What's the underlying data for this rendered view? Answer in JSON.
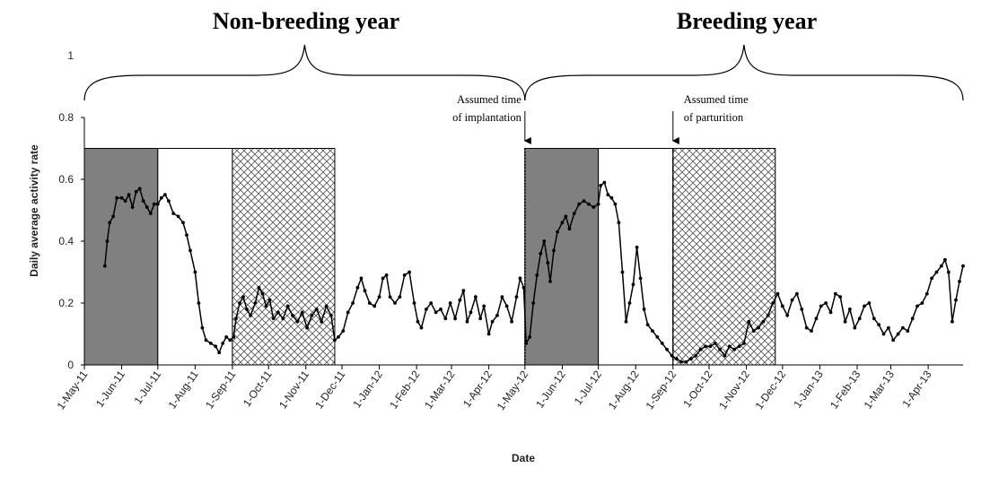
{
  "chart_data": {
    "type": "line",
    "xlabel": "Date",
    "ylabel": "Daily average activity rate",
    "ylim": [
      0,
      1
    ],
    "yticks": [
      "0",
      "0.2",
      "0.4",
      "0.6",
      "0.8",
      "1"
    ],
    "x_range": [
      "2011-05-01",
      "2013-04-30"
    ],
    "x_tick_labels": [
      {
        "date": "2011-05-01",
        "label": "1-May-11"
      },
      {
        "date": "2011-06-01",
        "label": "1-Jun-11"
      },
      {
        "date": "2011-07-01",
        "label": "1-Jul-11"
      },
      {
        "date": "2011-08-01",
        "label": "1-Aug-11"
      },
      {
        "date": "2011-09-01",
        "label": "1-Sep-11"
      },
      {
        "date": "2011-10-01",
        "label": "1-Oct-11"
      },
      {
        "date": "2011-11-01",
        "label": "1-Nov-11"
      },
      {
        "date": "2011-12-01",
        "label": "1-Dec-11"
      },
      {
        "date": "2012-01-01",
        "label": "1-Jan-12"
      },
      {
        "date": "2012-02-01",
        "label": "1-Feb-12"
      },
      {
        "date": "2012-03-01",
        "label": "1-Mar-12"
      },
      {
        "date": "2012-04-01",
        "label": "1-Apr-12"
      },
      {
        "date": "2012-05-01",
        "label": "1-May-12"
      },
      {
        "date": "2012-06-01",
        "label": "1-Jun-12"
      },
      {
        "date": "2012-07-01",
        "label": "1-Jul-12"
      },
      {
        "date": "2012-08-01",
        "label": "1-Aug-12"
      },
      {
        "date": "2012-09-01",
        "label": "1-Sep-12"
      },
      {
        "date": "2012-10-01",
        "label": "1-Oct-12"
      },
      {
        "date": "2012-11-01",
        "label": "1-Nov-12"
      },
      {
        "date": "2012-12-01",
        "label": "1-Dec-12"
      },
      {
        "date": "2013-01-01",
        "label": "1-Jan-13"
      },
      {
        "date": "2013-02-01",
        "label": "1-Feb-13"
      },
      {
        "date": "2013-03-01",
        "label": "1-Mar-13"
      },
      {
        "date": "2013-04-01",
        "label": "1-Apr-13"
      }
    ],
    "period_titles": [
      {
        "label": "Non-breeding year",
        "start": "2011-05-01",
        "end": "2012-05-01"
      },
      {
        "label": "Breeding year",
        "start": "2012-05-01",
        "end": "2013-04-30"
      }
    ],
    "shaded_periods": [
      {
        "start": "2011-05-01",
        "end": "2011-07-01",
        "fill": "dark-gray",
        "top": 0.7
      },
      {
        "start": "2011-07-01",
        "end": "2011-09-01",
        "fill": "white",
        "top": 0.7
      },
      {
        "start": "2011-09-01",
        "end": "2011-11-25",
        "fill": "crosshatch",
        "top": 0.7
      },
      {
        "start": "2012-05-01",
        "end": "2012-07-01",
        "fill": "dark-gray",
        "top": 0.7
      },
      {
        "start": "2012-07-01",
        "end": "2012-09-01",
        "fill": "white",
        "top": 0.7
      },
      {
        "start": "2012-09-01",
        "end": "2012-11-25",
        "fill": "crosshatch",
        "top": 0.7
      }
    ],
    "annotations": [
      {
        "lines": [
          "Assumed time",
          "of implantation"
        ],
        "date": "2012-05-01",
        "line_style": "dotted"
      },
      {
        "lines": [
          "Assumed time",
          "of parturition"
        ],
        "date": "2012-09-01",
        "line_style": "dashed"
      }
    ],
    "series": [
      {
        "points": [
          [
            "2011-05-18",
            0.32
          ],
          [
            "2011-05-20",
            0.4
          ],
          [
            "2011-05-22",
            0.46
          ],
          [
            "2011-05-25",
            0.48
          ],
          [
            "2011-05-28",
            0.54
          ],
          [
            "2011-06-01",
            0.54
          ],
          [
            "2011-06-04",
            0.53
          ],
          [
            "2011-06-07",
            0.55
          ],
          [
            "2011-06-10",
            0.51
          ],
          [
            "2011-06-13",
            0.56
          ],
          [
            "2011-06-16",
            0.57
          ],
          [
            "2011-06-19",
            0.53
          ],
          [
            "2011-06-22",
            0.51
          ],
          [
            "2011-06-25",
            0.49
          ],
          [
            "2011-06-28",
            0.52
          ],
          [
            "2011-07-01",
            0.52
          ],
          [
            "2011-07-04",
            0.54
          ],
          [
            "2011-07-07",
            0.55
          ],
          [
            "2011-07-10",
            0.53
          ],
          [
            "2011-07-14",
            0.49
          ],
          [
            "2011-07-18",
            0.48
          ],
          [
            "2011-07-22",
            0.46
          ],
          [
            "2011-07-25",
            0.42
          ],
          [
            "2011-07-28",
            0.37
          ],
          [
            "2011-08-01",
            0.3
          ],
          [
            "2011-08-04",
            0.2
          ],
          [
            "2011-08-07",
            0.12
          ],
          [
            "2011-08-10",
            0.08
          ],
          [
            "2011-08-14",
            0.07
          ],
          [
            "2011-08-18",
            0.06
          ],
          [
            "2011-08-21",
            0.04
          ],
          [
            "2011-08-24",
            0.07
          ],
          [
            "2011-08-27",
            0.09
          ],
          [
            "2011-08-30",
            0.08
          ],
          [
            "2011-09-02",
            0.09
          ],
          [
            "2011-09-04",
            0.15
          ],
          [
            "2011-09-07",
            0.2
          ],
          [
            "2011-09-10",
            0.22
          ],
          [
            "2011-09-13",
            0.18
          ],
          [
            "2011-09-16",
            0.16
          ],
          [
            "2011-09-20",
            0.2
          ],
          [
            "2011-09-23",
            0.25
          ],
          [
            "2011-09-26",
            0.23
          ],
          [
            "2011-09-29",
            0.19
          ],
          [
            "2011-10-02",
            0.21
          ],
          [
            "2011-10-05",
            0.15
          ],
          [
            "2011-10-09",
            0.17
          ],
          [
            "2011-10-13",
            0.15
          ],
          [
            "2011-10-17",
            0.19
          ],
          [
            "2011-10-21",
            0.16
          ],
          [
            "2011-10-25",
            0.14
          ],
          [
            "2011-10-29",
            0.17
          ],
          [
            "2011-11-02",
            0.12
          ],
          [
            "2011-11-06",
            0.16
          ],
          [
            "2011-11-10",
            0.18
          ],
          [
            "2011-11-14",
            0.14
          ],
          [
            "2011-11-18",
            0.19
          ],
          [
            "2011-11-22",
            0.16
          ],
          [
            "2011-11-25",
            0.08
          ],
          [
            "2011-11-28",
            0.09
          ],
          [
            "2011-12-02",
            0.11
          ],
          [
            "2011-12-06",
            0.17
          ],
          [
            "2011-12-10",
            0.2
          ],
          [
            "2011-12-14",
            0.25
          ],
          [
            "2011-12-17",
            0.28
          ],
          [
            "2011-12-20",
            0.24
          ],
          [
            "2011-12-24",
            0.2
          ],
          [
            "2011-12-28",
            0.19
          ],
          [
            "2012-01-01",
            0.22
          ],
          [
            "2012-01-04",
            0.28
          ],
          [
            "2012-01-07",
            0.29
          ],
          [
            "2012-01-10",
            0.22
          ],
          [
            "2012-01-14",
            0.2
          ],
          [
            "2012-01-18",
            0.22
          ],
          [
            "2012-01-22",
            0.29
          ],
          [
            "2012-01-26",
            0.3
          ],
          [
            "2012-01-30",
            0.2
          ],
          [
            "2012-02-02",
            0.14
          ],
          [
            "2012-02-05",
            0.12
          ],
          [
            "2012-02-09",
            0.18
          ],
          [
            "2012-02-13",
            0.2
          ],
          [
            "2012-02-17",
            0.17
          ],
          [
            "2012-02-21",
            0.18
          ],
          [
            "2012-02-25",
            0.15
          ],
          [
            "2012-02-29",
            0.2
          ],
          [
            "2012-03-04",
            0.15
          ],
          [
            "2012-03-08",
            0.21
          ],
          [
            "2012-03-11",
            0.24
          ],
          [
            "2012-03-14",
            0.14
          ],
          [
            "2012-03-17",
            0.17
          ],
          [
            "2012-03-21",
            0.22
          ],
          [
            "2012-03-25",
            0.15
          ],
          [
            "2012-03-28",
            0.19
          ],
          [
            "2012-04-01",
            0.1
          ],
          [
            "2012-04-04",
            0.14
          ],
          [
            "2012-04-08",
            0.16
          ],
          [
            "2012-04-12",
            0.22
          ],
          [
            "2012-04-16",
            0.19
          ],
          [
            "2012-04-20",
            0.14
          ],
          [
            "2012-04-24",
            0.22
          ],
          [
            "2012-04-27",
            0.28
          ],
          [
            "2012-04-30",
            0.25
          ],
          [
            "2012-05-02",
            0.07
          ],
          [
            "2012-05-05",
            0.09
          ],
          [
            "2012-05-08",
            0.2
          ],
          [
            "2012-05-11",
            0.29
          ],
          [
            "2012-05-14",
            0.36
          ],
          [
            "2012-05-17",
            0.4
          ],
          [
            "2012-05-20",
            0.33
          ],
          [
            "2012-05-22",
            0.27
          ],
          [
            "2012-05-25",
            0.37
          ],
          [
            "2012-05-28",
            0.43
          ],
          [
            "2012-06-01",
            0.46
          ],
          [
            "2012-06-04",
            0.48
          ],
          [
            "2012-06-07",
            0.44
          ],
          [
            "2012-06-11",
            0.49
          ],
          [
            "2012-06-15",
            0.52
          ],
          [
            "2012-06-19",
            0.53
          ],
          [
            "2012-06-23",
            0.52
          ],
          [
            "2012-06-27",
            0.51
          ],
          [
            "2012-07-01",
            0.52
          ],
          [
            "2012-07-03",
            0.58
          ],
          [
            "2012-07-06",
            0.59
          ],
          [
            "2012-07-09",
            0.55
          ],
          [
            "2012-07-12",
            0.54
          ],
          [
            "2012-07-15",
            0.52
          ],
          [
            "2012-07-18",
            0.46
          ],
          [
            "2012-07-21",
            0.3
          ],
          [
            "2012-07-24",
            0.14
          ],
          [
            "2012-07-27",
            0.2
          ],
          [
            "2012-07-30",
            0.26
          ],
          [
            "2012-08-02",
            0.38
          ],
          [
            "2012-08-05",
            0.28
          ],
          [
            "2012-08-08",
            0.18
          ],
          [
            "2012-08-11",
            0.13
          ],
          [
            "2012-08-15",
            0.11
          ],
          [
            "2012-08-19",
            0.09
          ],
          [
            "2012-08-23",
            0.07
          ],
          [
            "2012-08-27",
            0.05
          ],
          [
            "2012-08-31",
            0.03
          ],
          [
            "2012-09-04",
            0.02
          ],
          [
            "2012-09-08",
            0.01
          ],
          [
            "2012-09-12",
            0.01
          ],
          [
            "2012-09-16",
            0.02
          ],
          [
            "2012-09-20",
            0.03
          ],
          [
            "2012-09-24",
            0.05
          ],
          [
            "2012-09-28",
            0.06
          ],
          [
            "2012-10-02",
            0.06
          ],
          [
            "2012-10-06",
            0.07
          ],
          [
            "2012-10-10",
            0.05
          ],
          [
            "2012-10-14",
            0.03
          ],
          [
            "2012-10-18",
            0.06
          ],
          [
            "2012-10-22",
            0.05
          ],
          [
            "2012-10-26",
            0.06
          ],
          [
            "2012-10-30",
            0.07
          ],
          [
            "2012-11-03",
            0.14
          ],
          [
            "2012-11-07",
            0.11
          ],
          [
            "2012-11-11",
            0.12
          ],
          [
            "2012-11-15",
            0.14
          ],
          [
            "2012-11-19",
            0.16
          ],
          [
            "2012-11-23",
            0.2
          ],
          [
            "2012-11-27",
            0.23
          ],
          [
            "2012-12-01",
            0.19
          ],
          [
            "2012-12-05",
            0.16
          ],
          [
            "2012-12-09",
            0.21
          ],
          [
            "2012-12-13",
            0.23
          ],
          [
            "2012-12-17",
            0.18
          ],
          [
            "2012-12-21",
            0.12
          ],
          [
            "2012-12-25",
            0.11
          ],
          [
            "2012-12-29",
            0.15
          ],
          [
            "2013-01-02",
            0.19
          ],
          [
            "2013-01-06",
            0.2
          ],
          [
            "2013-01-10",
            0.17
          ],
          [
            "2013-01-14",
            0.23
          ],
          [
            "2013-01-18",
            0.22
          ],
          [
            "2013-01-22",
            0.14
          ],
          [
            "2013-01-26",
            0.18
          ],
          [
            "2013-01-30",
            0.12
          ],
          [
            "2013-02-03",
            0.15
          ],
          [
            "2013-02-07",
            0.19
          ],
          [
            "2013-02-11",
            0.2
          ],
          [
            "2013-02-15",
            0.15
          ],
          [
            "2013-02-19",
            0.13
          ],
          [
            "2013-02-23",
            0.1
          ],
          [
            "2013-02-27",
            0.12
          ],
          [
            "2013-03-03",
            0.08
          ],
          [
            "2013-03-07",
            0.1
          ],
          [
            "2013-03-11",
            0.12
          ],
          [
            "2013-03-15",
            0.11
          ],
          [
            "2013-03-19",
            0.15
          ],
          [
            "2013-03-23",
            0.19
          ],
          [
            "2013-03-27",
            0.2
          ],
          [
            "2013-03-31",
            0.23
          ],
          [
            "2013-04-04",
            0.28
          ],
          [
            "2013-04-08",
            0.3
          ],
          [
            "2013-04-12",
            0.32
          ],
          [
            "2013-04-15",
            0.34
          ],
          [
            "2013-04-18",
            0.3
          ],
          [
            "2013-04-21",
            0.14
          ],
          [
            "2013-04-24",
            0.21
          ],
          [
            "2013-04-27",
            0.27
          ],
          [
            "2013-04-30",
            0.32
          ]
        ]
      }
    ]
  }
}
